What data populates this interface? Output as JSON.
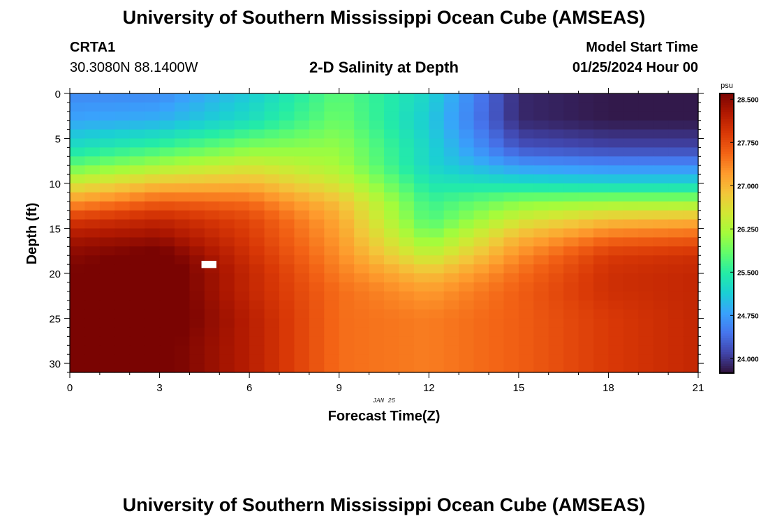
{
  "page": {
    "title": "University of Southern Mississippi Ocean Cube (AMSEAS)",
    "footer_title": "University of Southern Mississippi Ocean Cube (AMSEAS)",
    "station_id": "CRTA1",
    "station_coords": "30.3080N  88.1400W",
    "center_title": "2-D Salinity at Depth",
    "model_start_label": "Model Start Time",
    "model_start_value": "01/25/2024 Hour 00"
  },
  "chart_data": {
    "type": "heatmap",
    "title": "2-D Salinity at Depth",
    "xlabel": "Forecast Time(Z)",
    "ylabel": "Depth (ft)",
    "date_label": "JAN 25",
    "xlim": [
      0,
      21
    ],
    "ylim": [
      0,
      31
    ],
    "y_inverted": true,
    "x_ticks": [
      0,
      3,
      6,
      9,
      12,
      15,
      18,
      21
    ],
    "y_ticks": [
      0,
      5,
      10,
      15,
      20,
      25,
      30
    ],
    "colorbar": {
      "unit": "psu",
      "min": 23.75,
      "max": 28.6,
      "ticks": [
        "28.500",
        "27.750",
        "27.000",
        "26.250",
        "25.500",
        "24.750",
        "24.000"
      ],
      "tick_values": [
        28.5,
        27.75,
        27.0,
        26.25,
        25.5,
        24.75,
        24.0
      ],
      "colors": [
        "#30123b",
        "#4145ab",
        "#4675ed",
        "#39a2fc",
        "#1bcfd4",
        "#24eca6",
        "#61fc6c",
        "#a4fc3b",
        "#d1e834",
        "#f3c63a",
        "#fe9b2d",
        "#f36315",
        "#d93806",
        "#b11901",
        "#7a0402"
      ]
    },
    "depth_profile_ft": [
      0,
      3,
      6,
      8,
      10,
      12,
      14,
      16,
      18,
      20,
      22,
      25,
      28,
      31
    ],
    "hours": [
      0,
      3,
      6,
      9,
      12,
      15,
      18,
      21
    ],
    "salinity_psu": [
      [
        24.6,
        24.6,
        25.1,
        25.8,
        25.2,
        23.9,
        23.8,
        23.8
      ],
      [
        24.8,
        24.9,
        25.3,
        25.9,
        25.1,
        23.9,
        23.8,
        23.8
      ],
      [
        25.3,
        25.6,
        26.0,
        26.1,
        25.2,
        24.2,
        24.1,
        24.1
      ],
      [
        25.8,
        26.2,
        26.5,
        26.2,
        25.2,
        24.7,
        24.6,
        24.6
      ],
      [
        26.5,
        26.9,
        27.0,
        26.5,
        25.4,
        25.3,
        25.2,
        25.2
      ],
      [
        27.2,
        27.6,
        27.5,
        26.9,
        25.6,
        26.0,
        26.1,
        26.1
      ],
      [
        27.9,
        28.1,
        27.8,
        27.1,
        25.7,
        26.5,
        26.9,
        27.0
      ],
      [
        28.3,
        28.4,
        27.9,
        27.2,
        26.0,
        27.0,
        27.5,
        27.6
      ],
      [
        28.5,
        28.7,
        28.0,
        27.3,
        26.4,
        27.3,
        27.9,
        28.0
      ],
      [
        28.6,
        28.8,
        28.1,
        27.4,
        26.9,
        27.5,
        28.0,
        28.1
      ],
      [
        28.6,
        28.8,
        28.1,
        27.5,
        27.2,
        27.6,
        28.0,
        28.1
      ],
      [
        28.6,
        28.8,
        28.2,
        27.5,
        27.4,
        27.6,
        27.9,
        28.1
      ],
      [
        28.6,
        28.7,
        28.2,
        27.5,
        27.4,
        27.6,
        27.9,
        28.1
      ],
      [
        28.6,
        28.7,
        28.2,
        27.5,
        27.4,
        27.6,
        27.9,
        28.1
      ]
    ],
    "missing_cell": {
      "hour_start": 4.4,
      "hour_end": 4.9,
      "depth_start": 18.6,
      "depth_end": 19.4
    }
  }
}
